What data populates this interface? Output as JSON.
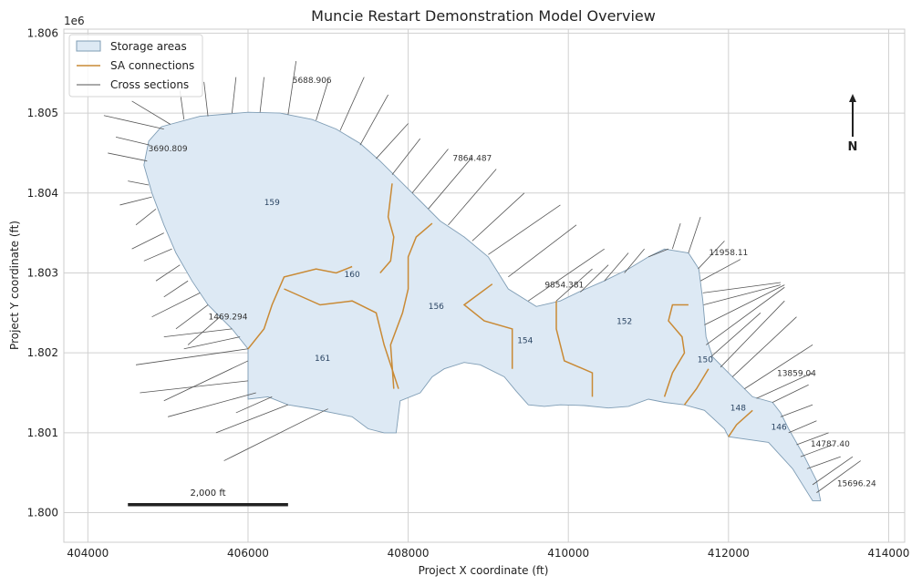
{
  "chart_data": {
    "type": "map",
    "title": "Muncie Restart Demonstration Model Overview",
    "xlabel": "Project X coordinate (ft)",
    "ylabel": "Project Y coordinate (ft)",
    "y_offset_label": "1e6",
    "xlim": [
      403700,
      414200
    ],
    "ylim": [
      1799630,
      1806050
    ],
    "x_ticks": [
      404000,
      406000,
      408000,
      410000,
      412000,
      414000
    ],
    "x_tick_labels": [
      "404000",
      "406000",
      "408000",
      "410000",
      "412000",
      "414000"
    ],
    "y_ticks": [
      1800000,
      1801000,
      1802000,
      1803000,
      1804000,
      1805000,
      1806000
    ],
    "y_tick_labels": [
      "1.800",
      "1.801",
      "1.802",
      "1.803",
      "1.804",
      "1.805",
      "1.806"
    ],
    "grid": true,
    "legend_position": "top-left",
    "colors": {
      "storage_fill": "#dde9f4",
      "storage_edge": "#7f9db5",
      "sa_connection": "#c98a35",
      "cross_section": "#555555",
      "grid": "#d0d0d0"
    },
    "legend": [
      {
        "label": "Storage areas",
        "kind": "patch"
      },
      {
        "label": "SA connections",
        "kind": "line-orange"
      },
      {
        "label": "Cross sections",
        "kind": "line-dark"
      }
    ],
    "storage_outline": [
      [
        404920,
        1804830
      ],
      [
        405400,
        1804960
      ],
      [
        406000,
        1805010
      ],
      [
        406400,
        1805000
      ],
      [
        406800,
        1804920
      ],
      [
        407100,
        1804800
      ],
      [
        407400,
        1804620
      ],
      [
        407650,
        1804400
      ],
      [
        407900,
        1804150
      ],
      [
        408150,
        1803900
      ],
      [
        408400,
        1803650
      ],
      [
        408700,
        1803450
      ],
      [
        409000,
        1803200
      ],
      [
        409250,
        1802800
      ],
      [
        409600,
        1802580
      ],
      [
        409900,
        1802650
      ],
      [
        410150,
        1802770
      ],
      [
        410450,
        1802900
      ],
      [
        410750,
        1803050
      ],
      [
        411000,
        1803200
      ],
      [
        411200,
        1803300
      ],
      [
        411500,
        1803250
      ],
      [
        411630,
        1803050
      ],
      [
        411680,
        1802650
      ],
      [
        411720,
        1802200
      ],
      [
        411800,
        1801950
      ],
      [
        411950,
        1801800
      ],
      [
        412100,
        1801650
      ],
      [
        412300,
        1801450
      ],
      [
        412550,
        1801380
      ],
      [
        412650,
        1801250
      ],
      [
        412750,
        1801050
      ],
      [
        412950,
        1800700
      ],
      [
        413100,
        1800400
      ],
      [
        413150,
        1800150
      ],
      [
        413050,
        1800150
      ],
      [
        412800,
        1800550
      ],
      [
        412500,
        1800880
      ],
      [
        412000,
        1800950
      ],
      [
        411950,
        1801050
      ],
      [
        411700,
        1801280
      ],
      [
        411450,
        1801350
      ],
      [
        411200,
        1801380
      ],
      [
        411000,
        1801420
      ],
      [
        410750,
        1801330
      ],
      [
        410500,
        1801310
      ],
      [
        410200,
        1801340
      ],
      [
        409900,
        1801350
      ],
      [
        409700,
        1801330
      ],
      [
        409500,
        1801350
      ],
      [
        409350,
        1801520
      ],
      [
        409200,
        1801700
      ],
      [
        408900,
        1801850
      ],
      [
        408700,
        1801880
      ],
      [
        408450,
        1801800
      ],
      [
        408300,
        1801700
      ],
      [
        408150,
        1801500
      ],
      [
        407900,
        1801400
      ],
      [
        407850,
        1801000
      ],
      [
        407700,
        1801000
      ],
      [
        407500,
        1801050
      ],
      [
        407300,
        1801200
      ],
      [
        406800,
        1801300
      ],
      [
        406500,
        1801350
      ],
      [
        406250,
        1801450
      ],
      [
        406000,
        1801420
      ],
      [
        406000,
        1802050
      ],
      [
        405800,
        1802300
      ],
      [
        405500,
        1802600
      ],
      [
        405300,
        1802900
      ],
      [
        405100,
        1803250
      ],
      [
        404950,
        1803600
      ],
      [
        404800,
        1804000
      ],
      [
        404700,
        1804350
      ],
      [
        404760,
        1804650
      ]
    ],
    "sa_connections": [
      [
        [
          407800,
          1804120
        ],
        [
          407750,
          1803700
        ],
        [
          407820,
          1803450
        ],
        [
          407780,
          1803150
        ],
        [
          407650,
          1803000
        ]
      ],
      [
        [
          408300,
          1803620
        ],
        [
          408100,
          1803450
        ],
        [
          408000,
          1803200
        ],
        [
          408000,
          1802800
        ],
        [
          407930,
          1802500
        ],
        [
          407780,
          1802100
        ],
        [
          407820,
          1801550
        ]
      ],
      [
        [
          406000,
          1802050
        ],
        [
          406200,
          1802300
        ],
        [
          406300,
          1802600
        ],
        [
          406450,
          1802950
        ],
        [
          406850,
          1803050
        ],
        [
          407100,
          1803000
        ],
        [
          407300,
          1803080
        ]
      ],
      [
        [
          406450,
          1802800
        ],
        [
          406900,
          1802600
        ],
        [
          407300,
          1802650
        ],
        [
          407600,
          1802500
        ],
        [
          407700,
          1802100
        ],
        [
          407880,
          1801550
        ]
      ],
      [
        [
          409050,
          1802860
        ],
        [
          408700,
          1802600
        ],
        [
          408950,
          1802400
        ],
        [
          409300,
          1802300
        ],
        [
          409300,
          1801800
        ]
      ],
      [
        [
          409850,
          1802650
        ],
        [
          409850,
          1802300
        ],
        [
          409950,
          1801900
        ],
        [
          410300,
          1801750
        ],
        [
          410300,
          1801450
        ]
      ],
      [
        [
          411500,
          1802600
        ],
        [
          411300,
          1802600
        ],
        [
          411250,
          1802400
        ],
        [
          411420,
          1802200
        ],
        [
          411450,
          1802000
        ],
        [
          411300,
          1801750
        ],
        [
          411200,
          1801450
        ]
      ],
      [
        [
          411750,
          1801800
        ],
        [
          411600,
          1801550
        ],
        [
          411450,
          1801350
        ]
      ],
      [
        [
          412300,
          1801280
        ],
        [
          412100,
          1801100
        ],
        [
          412000,
          1800950
        ]
      ]
    ],
    "storage_areas": [
      {
        "label": "159",
        "x": 406300,
        "y": 1803850
      },
      {
        "label": "160",
        "x": 407300,
        "y": 1802950
      },
      {
        "label": "156",
        "x": 408350,
        "y": 1802550
      },
      {
        "label": "154",
        "x": 409460,
        "y": 1802120
      },
      {
        "label": "152",
        "x": 410700,
        "y": 1802360
      },
      {
        "label": "150",
        "x": 411710,
        "y": 1801880
      },
      {
        "label": "148",
        "x": 412120,
        "y": 1801280
      },
      {
        "label": "146",
        "x": 412630,
        "y": 1801040
      },
      {
        "label": "161",
        "x": 406930,
        "y": 1801900
      }
    ],
    "cross_section_labels": [
      {
        "label": "5688.906",
        "x": 406800,
        "y": 1805380
      },
      {
        "label": "3690.809",
        "x": 405000,
        "y": 1804520
      },
      {
        "label": "7864.487",
        "x": 408800,
        "y": 1804400
      },
      {
        "label": "11958.11",
        "x": 412000,
        "y": 1803220
      },
      {
        "label": "9854.381",
        "x": 409950,
        "y": 1802820
      },
      {
        "label": "1469.294",
        "x": 405750,
        "y": 1802420
      },
      {
        "label": "13859.04",
        "x": 412850,
        "y": 1801710
      },
      {
        "label": "14787.40",
        "x": 413270,
        "y": 1800830
      },
      {
        "label": "15696.24",
        "x": 413600,
        "y": 1800330
      }
    ],
    "scale_bar": {
      "label": "2,000 ft",
      "x_start": 404500,
      "x_end": 406500,
      "y": 1800100
    },
    "north_arrow": {
      "label": "N"
    }
  }
}
